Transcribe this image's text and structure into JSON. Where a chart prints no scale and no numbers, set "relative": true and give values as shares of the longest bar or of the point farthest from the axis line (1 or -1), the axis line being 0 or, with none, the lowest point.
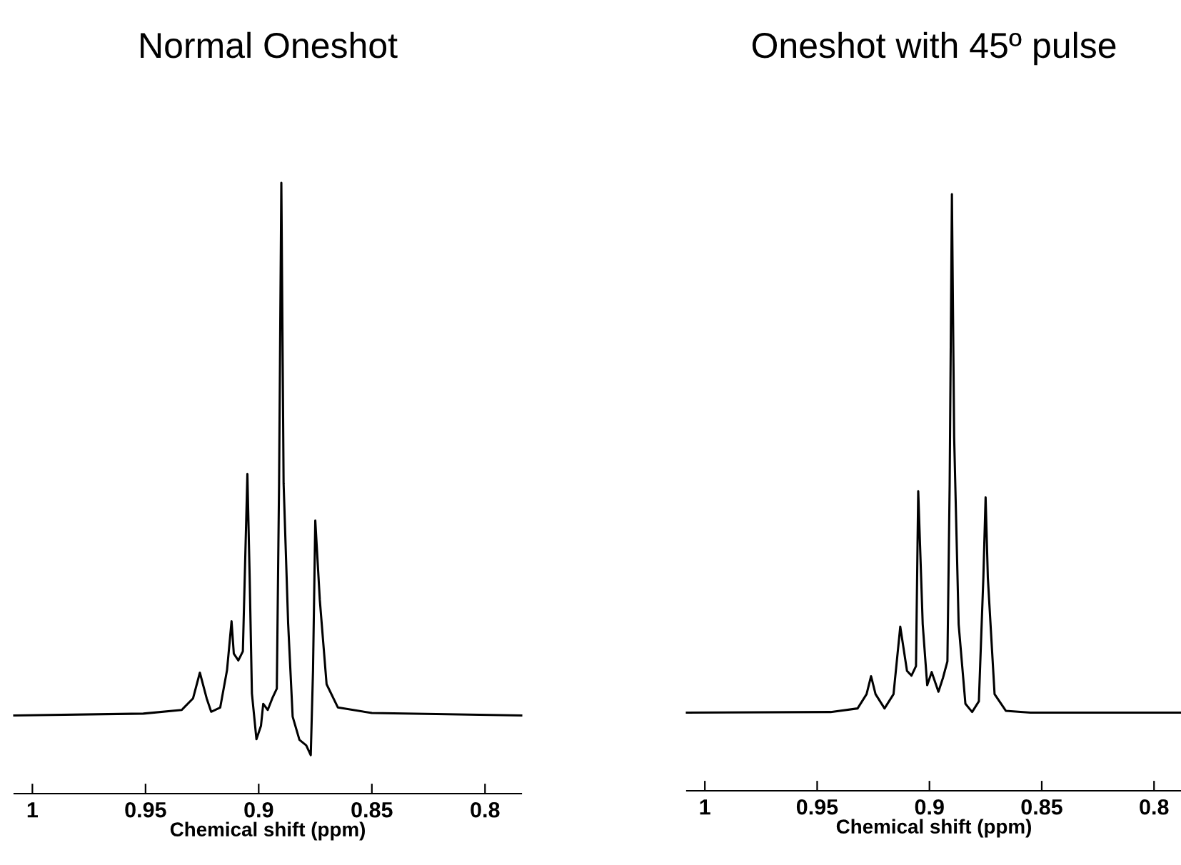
{
  "chart_data": [
    {
      "type": "line",
      "title": "Normal Oneshot",
      "xlabel": "Chemical shift (ppm)",
      "relative": true,
      "xlim": [
        1.008,
        0.784
      ],
      "xticks": [
        1,
        0.95,
        0.9,
        0.85,
        0.8
      ],
      "grid": false,
      "legend": false,
      "series": [
        {
          "color": "#000000",
          "x": [
            1.008,
            0.951,
            0.934,
            0.929,
            0.926,
            0.923,
            0.921,
            0.917,
            0.914,
            0.912,
            0.911,
            0.909,
            0.907,
            0.905,
            0.904,
            0.903,
            0.901,
            0.899,
            0.898,
            0.896,
            0.894,
            0.892,
            0.891,
            0.89,
            0.889,
            0.887,
            0.885,
            0.882,
            0.879,
            0.877,
            0.876,
            0.875,
            0.873,
            0.87,
            0.865,
            0.85,
            0.784
          ],
          "values": [
            0.128,
            0.131,
            0.137,
            0.156,
            0.198,
            0.156,
            0.134,
            0.141,
            0.202,
            0.282,
            0.229,
            0.218,
            0.233,
            0.523,
            0.355,
            0.164,
            0.089,
            0.111,
            0.147,
            0.137,
            0.156,
            0.172,
            0.508,
            1,
            0.508,
            0.279,
            0.126,
            0.088,
            0.079,
            0.063,
            0.202,
            0.447,
            0.317,
            0.179,
            0.141,
            0.132,
            0.128
          ]
        }
      ]
    },
    {
      "type": "line",
      "title": "Oneshot with 45º pulse",
      "xlabel": "Chemical shift (ppm)",
      "relative": true,
      "xlim": [
        1.008,
        0.788
      ],
      "xticks": [
        1,
        0.95,
        0.9,
        0.85,
        0.8
      ],
      "grid": false,
      "legend": false,
      "series": [
        {
          "color": "#000000",
          "x": [
            1.008,
            0.944,
            0.932,
            0.928,
            0.926,
            0.924,
            0.92,
            0.916,
            0.913,
            0.91,
            0.908,
            0.906,
            0.905,
            0.903,
            0.901,
            0.899,
            0.896,
            0.894,
            0.892,
            0.891,
            0.89,
            0.889,
            0.887,
            0.884,
            0.881,
            0.878,
            0.876,
            0.875,
            0.874,
            0.871,
            0.866,
            0.855,
            0.788
          ],
          "values": [
            0.131,
            0.132,
            0.138,
            0.162,
            0.192,
            0.162,
            0.138,
            0.162,
            0.275,
            0.201,
            0.193,
            0.209,
            0.502,
            0.279,
            0.177,
            0.199,
            0.166,
            0.189,
            0.217,
            0.514,
            1,
            0.592,
            0.279,
            0.146,
            0.132,
            0.15,
            0.357,
            0.492,
            0.357,
            0.162,
            0.134,
            0.131,
            0.131
          ]
        }
      ]
    }
  ]
}
